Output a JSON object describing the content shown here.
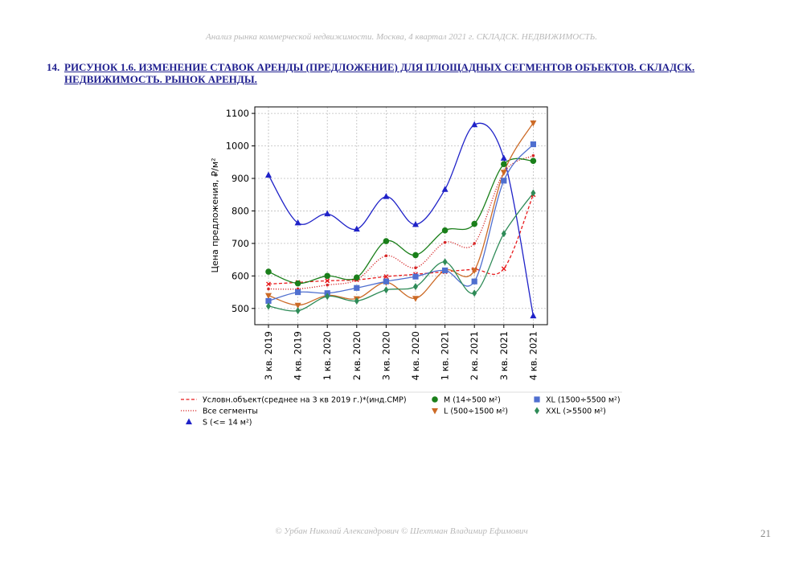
{
  "header": "Анализ рынка коммерческой недвижимости.   Москва,  4 квартал 2021 г.   СКЛАДСК. НЕДВИЖИМОСТЬ.",
  "caption": {
    "number": "14.",
    "text": "РИСУНОК 1.6. ИЗМЕНЕНИЕ СТАВОК АРЕНДЫ (ПРЕДЛОЖЕНИЕ) ДЛЯ ПЛОЩАДНЫХ СЕГМЕНТОВ ОБЪЕКТОВ. СКЛАДСК. НЕДВИЖИМОСТЬ. РЫНОК АРЕНДЫ."
  },
  "footer": "© Урбан Николай Александрович   © Шехтман Владимир Ефимович",
  "page_number": "21",
  "chart_data": {
    "type": "line",
    "ylabel": "Цена предложения, ₽/м²",
    "ylim": [
      450,
      1120
    ],
    "yticks": [
      500,
      600,
      700,
      800,
      900,
      1000,
      1100
    ],
    "grid": true,
    "legend_placement": "bottom",
    "categories": [
      "3 кв. 2019",
      "4 кв. 2019",
      "1 кв. 2020",
      "2 кв. 2020",
      "3 кв. 2020",
      "4 кв. 2020",
      "1 кв. 2021",
      "2 кв. 2021",
      "3 кв. 2021",
      "4 кв. 2021"
    ],
    "series": [
      {
        "name": "Условн.объект(среднее на 3 кв 2019 г.)*(инд.СМР)",
        "color": "#e8191b",
        "style": "dashed",
        "marker": "x",
        "values": [
          575,
          580,
          585,
          588,
          598,
          605,
          613,
          620,
          622,
          850
        ]
      },
      {
        "name": "Все сегменты",
        "color": "#d62728",
        "style": "dotted",
        "marker": "dot",
        "values": [
          560,
          560,
          572,
          588,
          662,
          625,
          703,
          700,
          918,
          970
        ]
      },
      {
        "name": "S (<= 14 м²)",
        "color": "#1f22c8",
        "style": "solid",
        "marker": "triangle-up",
        "values": [
          910,
          763,
          791,
          744,
          844,
          758,
          866,
          1065,
          962,
          477
        ]
      },
      {
        "name": "M (14÷500 м²)",
        "color": "#1a7f1a",
        "style": "solid",
        "marker": "circle",
        "values": [
          613,
          577,
          600,
          595,
          707,
          664,
          740,
          760,
          944,
          954
        ]
      },
      {
        "name": "L (500÷1500 м²)",
        "color": "#cc6a26",
        "style": "solid",
        "marker": "triangle-down",
        "values": [
          540,
          510,
          540,
          530,
          580,
          531,
          617,
          617,
          919,
          1071
        ]
      },
      {
        "name": "XL (1500÷5500 м²)",
        "color": "#4f6fcf",
        "style": "solid",
        "marker": "square",
        "values": [
          523,
          550,
          547,
          563,
          583,
          598,
          617,
          583,
          893,
          1005
        ]
      },
      {
        "name": "XXL (>5500 м²)",
        "color": "#2e8b57",
        "style": "solid",
        "marker": "diamond",
        "values": [
          507,
          493,
          537,
          523,
          557,
          567,
          643,
          547,
          730,
          855
        ]
      }
    ]
  }
}
